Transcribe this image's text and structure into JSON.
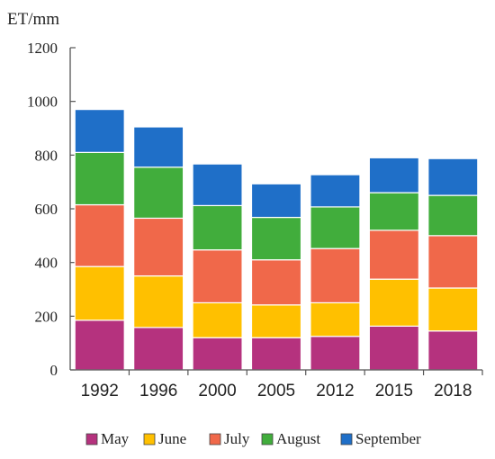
{
  "chart_data": {
    "type": "bar",
    "stacked": true,
    "title": "",
    "xlabel": "",
    "ylabel": "ET/mm",
    "ylim": [
      0,
      1200
    ],
    "yticks": [
      0,
      200,
      400,
      600,
      800,
      1000,
      1200
    ],
    "grid": false,
    "legend_position": "bottom",
    "categories": [
      "1992",
      "1996",
      "2000",
      "2005",
      "2012",
      "2015",
      "2018"
    ],
    "series": [
      {
        "name": "May",
        "color": "#b5327e",
        "values": [
          185,
          158,
          120,
          120,
          125,
          163,
          145
        ]
      },
      {
        "name": "June",
        "color": "#ffc000",
        "values": [
          200,
          192,
          130,
          122,
          125,
          175,
          160
        ]
      },
      {
        "name": "July",
        "color": "#f0684a",
        "values": [
          230,
          215,
          197,
          168,
          202,
          182,
          195
        ]
      },
      {
        "name": "August",
        "color": "#41ad3c",
        "values": [
          195,
          190,
          165,
          158,
          155,
          140,
          150
        ]
      },
      {
        "name": "September",
        "color": "#1f6fc8",
        "values": [
          160,
          150,
          155,
          125,
          120,
          130,
          137
        ]
      }
    ]
  }
}
